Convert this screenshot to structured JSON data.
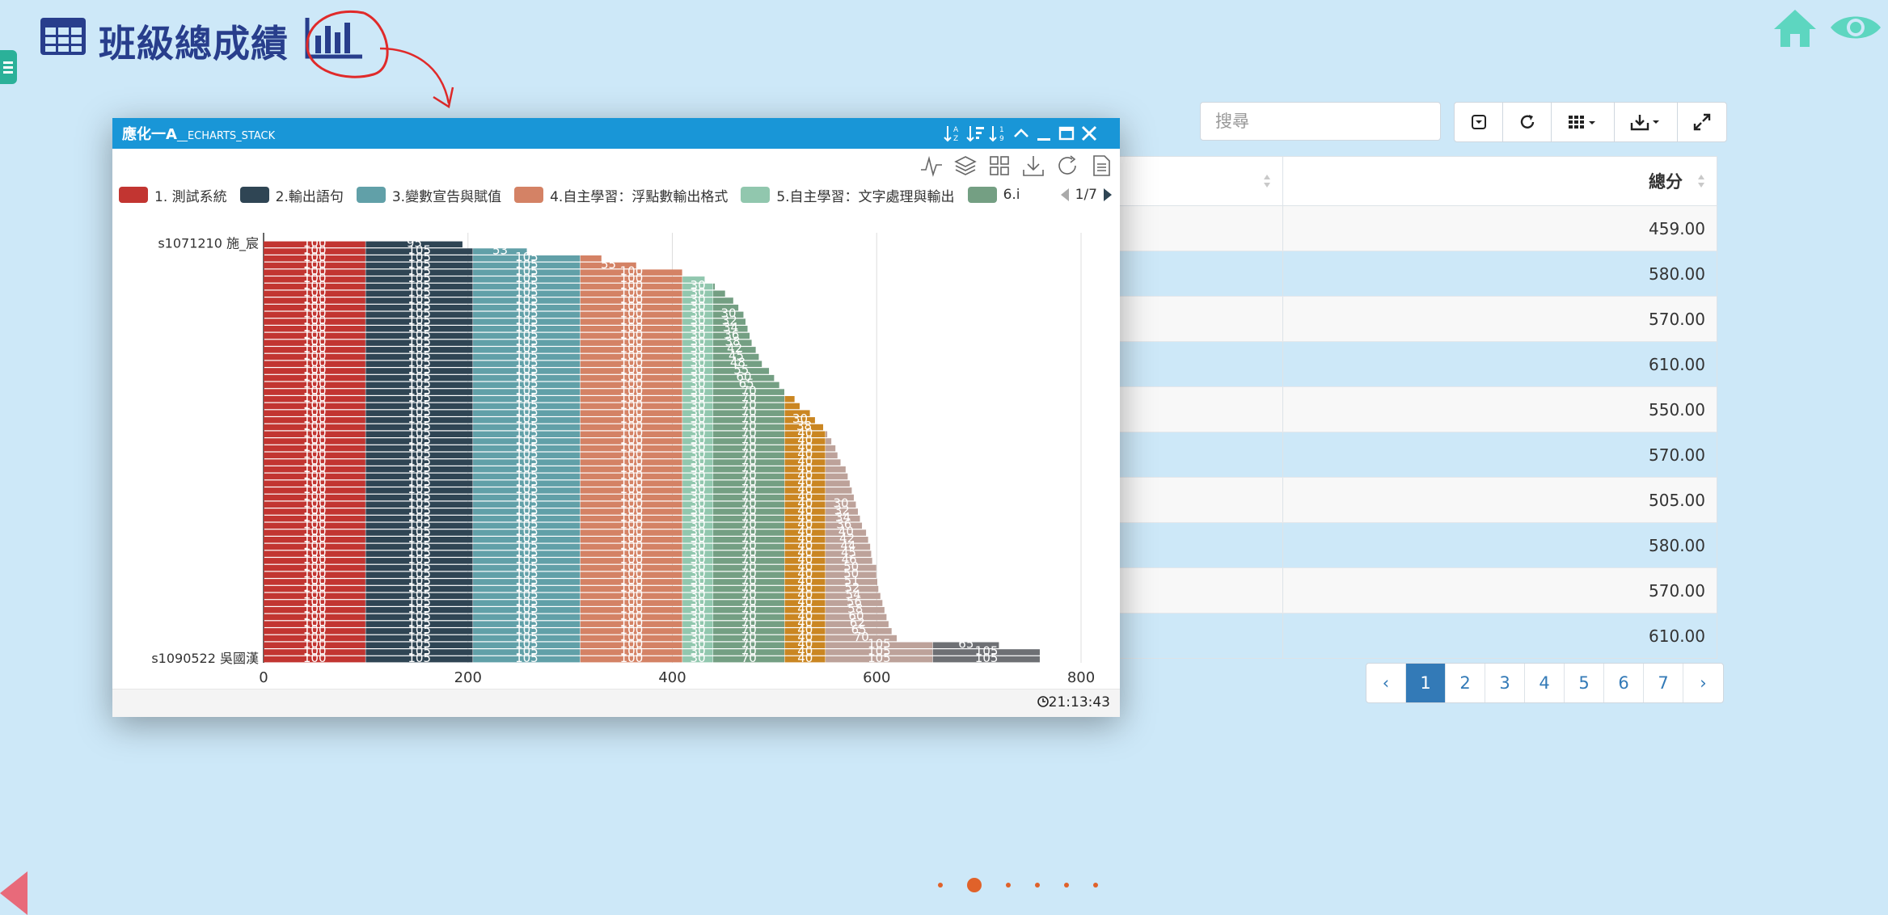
{
  "header": {
    "title": "班級總成績"
  },
  "toolbar": {
    "search_placeholder": "搜尋"
  },
  "table": {
    "header_total": "總分",
    "rows": [
      "459.00",
      "580.00",
      "570.00",
      "610.00",
      "550.00",
      "570.00",
      "505.00",
      "580.00",
      "570.00",
      "610.00"
    ]
  },
  "pagination": {
    "prev": "‹",
    "next": "›",
    "pages": [
      "1",
      "2",
      "3",
      "4",
      "5",
      "6",
      "7"
    ],
    "active": "1"
  },
  "chart_window": {
    "title_main": "應化一A",
    "title_sub": "__ECHARTS_STACK",
    "time": "21:13:43",
    "legend_page": "1/7"
  },
  "chart_data": {
    "type": "bar",
    "orientation": "horizontal",
    "stacked": true,
    "xlim": [
      0,
      800
    ],
    "xticks": [
      "0",
      "200",
      "400",
      "600",
      "800"
    ],
    "first_category": "s1071210 施_宸",
    "last_category": "s1090522 吳國漢",
    "series": [
      {
        "name": "1. 測試系統",
        "color": "#c23531",
        "typical_value": 100
      },
      {
        "name": "2.輸出語句",
        "color": "#2f4554",
        "typical_value": 105
      },
      {
        "name": "3.變數宣告與賦值",
        "color": "#61a0a8",
        "typical_value": 105
      },
      {
        "name": "4.自主學習：浮點數輸出格式",
        "color": "#d48265",
        "typical_value": 100
      },
      {
        "name": "5.自主學習：文字處理與輸出",
        "color": "#91c7ae",
        "typical_value": 30
      },
      {
        "name": "6.i",
        "color": "#749f83",
        "typical_value": 70
      }
    ],
    "extra_colors": [
      "#ca8622",
      "#bda29a",
      "#6e7074"
    ],
    "row_totals": [
      195,
      258,
      331,
      365,
      410,
      432,
      442,
      452,
      460,
      465,
      470,
      472,
      474,
      476,
      478,
      482,
      485,
      488,
      495,
      500,
      505,
      510,
      520,
      525,
      535,
      540,
      548,
      552,
      556,
      560,
      562,
      565,
      570,
      572,
      574,
      576,
      578,
      580,
      582,
      584,
      586,
      590,
      592,
      594,
      595,
      596,
      600,
      600,
      601,
      602,
      604,
      606,
      608,
      610,
      612,
      615,
      620,
      720,
      770,
      775
    ],
    "data_labels_example": {
      "s1090522": [
        100,
        105,
        105,
        105,
        30,
        80,
        40,
        105,
        105
      ]
    }
  },
  "colors": {
    "accent": "#337ab7",
    "background": "#cde8f8",
    "title": "#283e8c",
    "window_bar": "#1996d7"
  }
}
